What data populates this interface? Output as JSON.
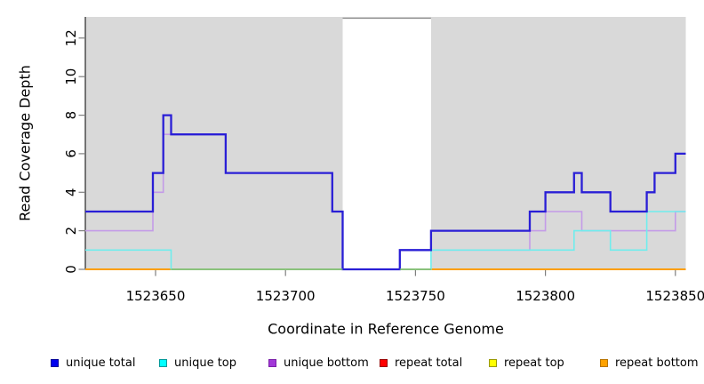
{
  "chart_data": {
    "type": "line",
    "subtype": "step-coverage",
    "title": "",
    "xlabel": "Coordinate in Reference Genome",
    "ylabel": "Read Coverage Depth",
    "xlim": [
      1523623,
      1523854
    ],
    "ylim": [
      0,
      13.1
    ],
    "x_ticks": [
      1523650,
      1523700,
      1523750,
      1523800,
      1523850
    ],
    "y_ticks": [
      0,
      2,
      4,
      6,
      8,
      10,
      12
    ],
    "grid": false,
    "legend_position": "bottom",
    "plot_bg_color": "#d9d9d9",
    "axis_line_color": "#262626",
    "tick_color": "#7f7f7f",
    "highlight_band": {
      "x1": 1523722,
      "x2": 1523756,
      "color": "#ffffff",
      "top_border_color": "#8c8c8c"
    },
    "series": [
      {
        "name": "unique total",
        "line_color": "#2a1fd6",
        "legend_fill": "#0000ee",
        "legend_border": "#000099",
        "line_width": 2.3,
        "steps": [
          [
            1523623,
            3
          ],
          [
            1523649,
            5
          ],
          [
            1523653,
            8
          ],
          [
            1523656,
            7
          ],
          [
            1523677,
            5
          ],
          [
            1523718,
            3
          ],
          [
            1523722,
            0
          ],
          [
            1523744,
            1
          ],
          [
            1523756,
            2
          ],
          [
            1523794,
            3
          ],
          [
            1523800,
            4
          ],
          [
            1523811,
            5
          ],
          [
            1523814,
            4
          ],
          [
            1523825,
            3
          ],
          [
            1523839,
            4
          ],
          [
            1523842,
            5
          ],
          [
            1523850,
            6
          ],
          [
            1523854,
            6
          ]
        ]
      },
      {
        "name": "unique top",
        "line_color": "#6feded",
        "legend_fill": "#00ffff",
        "legend_border": "#009999",
        "line_width": 1.6,
        "steps": [
          [
            1523623,
            1
          ],
          [
            1523656,
            0
          ],
          [
            1523756,
            1
          ],
          [
            1523811,
            2
          ],
          [
            1523825,
            1
          ],
          [
            1523839,
            3
          ],
          [
            1523854,
            3
          ]
        ]
      },
      {
        "name": "unique bottom",
        "line_color": "#c49be8",
        "legend_fill": "#a238d8",
        "legend_border": "#7a1fa8",
        "line_width": 1.6,
        "steps": [
          [
            1523623,
            2
          ],
          [
            1523649,
            4
          ],
          [
            1523653,
            7
          ],
          [
            1523677,
            5
          ],
          [
            1523718,
            3
          ],
          [
            1523722,
            0
          ],
          [
            1523744,
            1
          ],
          [
            1523794,
            2
          ],
          [
            1523800,
            3
          ],
          [
            1523814,
            2
          ],
          [
            1523850,
            3
          ],
          [
            1523854,
            3
          ]
        ]
      },
      {
        "name": "repeat total",
        "line_color": "#e00000",
        "legend_fill": "#ff0000",
        "legend_border": "#990000",
        "line_width": 1.6,
        "steps": [
          [
            1523623,
            0
          ],
          [
            1523854,
            0
          ]
        ]
      },
      {
        "name": "repeat top",
        "line_color": "#ffff00",
        "legend_fill": "#ffff00",
        "legend_border": "#999900",
        "line_width": 1.6,
        "steps": [
          [
            1523623,
            0
          ],
          [
            1523854,
            0
          ]
        ]
      },
      {
        "name": "repeat bottom",
        "line_color": "#ff9d00",
        "legend_fill": "#ffa200",
        "legend_border": "#b87400",
        "line_width": 1.8,
        "steps": [
          [
            1523623,
            0
          ],
          [
            1523854,
            0
          ]
        ]
      }
    ],
    "draw_order": [
      3,
      4,
      5,
      2,
      1,
      0
    ],
    "zero_line_overlays": [
      {
        "x1": 1523656,
        "x2": 1523722,
        "color": "#7cc07c"
      },
      {
        "x1": 1523744,
        "x2": 1523756,
        "color": "#7cc07c"
      }
    ]
  }
}
